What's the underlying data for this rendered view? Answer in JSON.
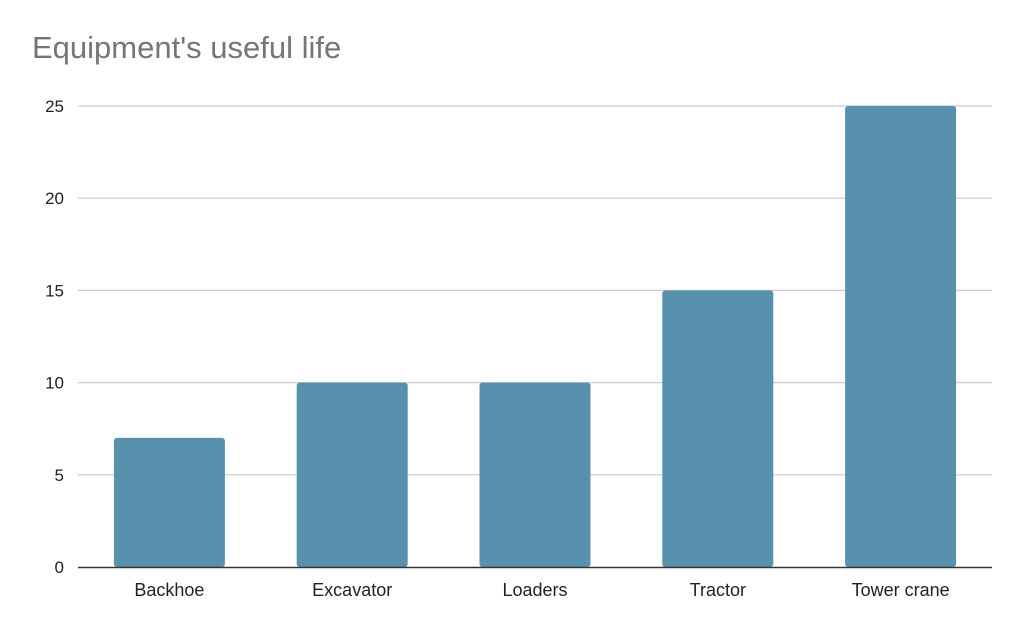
{
  "chart_data": {
    "type": "bar",
    "title": "Equipment's useful life",
    "xlabel": "",
    "ylabel": "",
    "categories": [
      "Backhoe",
      "Excavator",
      "Loaders",
      "Tractor",
      "Tower crane"
    ],
    "values": [
      7,
      10,
      10,
      15,
      25
    ],
    "ylim": [
      0,
      25
    ],
    "yticks": [
      0,
      5,
      10,
      15,
      20,
      25
    ],
    "grid": true,
    "legend": "none",
    "colors": {
      "bar": "#5891ae",
      "grid": "#cccccc",
      "axis": "#333333"
    }
  }
}
